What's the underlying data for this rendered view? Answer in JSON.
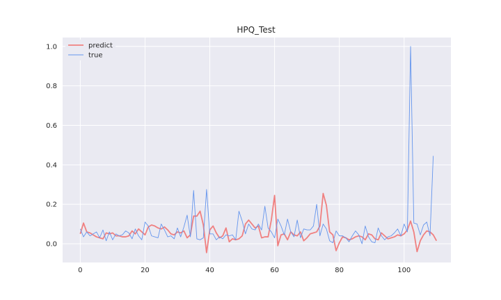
{
  "chart_data": {
    "type": "line",
    "title": "HPQ_Test",
    "xlabel": "",
    "ylabel": "",
    "xlim": [
      -5.45,
      114.45
    ],
    "ylim": [
      -0.095,
      1.045
    ],
    "xticks": [
      0,
      20,
      40,
      60,
      80,
      100
    ],
    "yticks": [
      0.0,
      0.2,
      0.4,
      0.6,
      0.8,
      1.0
    ],
    "ytick_labels": [
      "0.0",
      "0.2",
      "0.4",
      "0.6",
      "0.8",
      "1.0"
    ],
    "grid": true,
    "legend_position": "upper-left",
    "background_color": "#eaeaf2",
    "grid_color": "#ffffff",
    "series": [
      {
        "name": "predict",
        "color": "#f08080",
        "linewidth": 1.8,
        "values": [
          0.05,
          0.105,
          0.06,
          0.055,
          0.045,
          0.035,
          0.03,
          0.025,
          0.055,
          0.05,
          0.055,
          0.04,
          0.04,
          0.035,
          0.035,
          0.04,
          0.065,
          0.05,
          0.075,
          0.06,
          0.045,
          0.085,
          0.095,
          0.09,
          0.08,
          0.075,
          0.085,
          0.07,
          0.05,
          0.045,
          0.06,
          0.055,
          0.065,
          0.03,
          0.045,
          0.14,
          0.14,
          0.165,
          0.095,
          -0.045,
          0.07,
          0.09,
          0.055,
          0.03,
          0.04,
          0.08,
          0.01,
          0.025,
          0.02,
          0.025,
          0.04,
          0.1,
          0.12,
          0.1,
          0.08,
          0.09,
          0.03,
          0.035,
          0.035,
          0.12,
          0.245,
          -0.01,
          0.045,
          0.05,
          0.02,
          0.06,
          0.045,
          0.04,
          0.06,
          0.015,
          0.03,
          0.05,
          0.055,
          0.06,
          0.09,
          0.255,
          0.195,
          0.06,
          0.045,
          -0.035,
          0.005,
          0.035,
          0.03,
          0.02,
          0.025,
          0.035,
          0.04,
          0.035,
          0.02,
          0.05,
          0.045,
          0.025,
          0.02,
          0.055,
          0.04,
          0.025,
          0.03,
          0.035,
          0.045,
          0.04,
          0.05,
          0.07,
          0.115,
          0.06,
          -0.04,
          0.015,
          0.045,
          0.065,
          0.06,
          0.045,
          0.015
        ]
      },
      {
        "name": "true",
        "color": "#6495ed",
        "linewidth": 0.9,
        "values": [
          0.075,
          0.035,
          0.06,
          0.04,
          0.05,
          0.06,
          0.03,
          0.07,
          0.015,
          0.06,
          0.02,
          0.05,
          0.04,
          0.045,
          0.065,
          0.055,
          0.025,
          0.075,
          0.04,
          0.02,
          0.11,
          0.09,
          0.04,
          0.035,
          0.03,
          0.1,
          0.07,
          0.035,
          0.04,
          0.025,
          0.08,
          0.035,
          0.085,
          0.145,
          0.035,
          0.27,
          0.025,
          0.02,
          0.03,
          0.275,
          0.05,
          0.05,
          0.02,
          0.035,
          0.025,
          0.045,
          0.04,
          0.045,
          0.02,
          0.165,
          0.115,
          0.05,
          0.1,
          0.075,
          0.07,
          0.1,
          0.07,
          0.19,
          0.08,
          0.06,
          0.03,
          0.125,
          0.09,
          0.045,
          0.125,
          0.06,
          0.035,
          0.12,
          0.03,
          0.075,
          0.07,
          0.07,
          0.09,
          0.2,
          0.04,
          0.1,
          0.075,
          0.015,
          0.005,
          0.065,
          0.04,
          0.04,
          0.03,
          0.01,
          0.04,
          0.065,
          0.045,
          0.0,
          0.09,
          0.035,
          0.01,
          0.005,
          0.08,
          0.04,
          0.02,
          0.035,
          0.04,
          0.055,
          0.075,
          0.04,
          0.1,
          0.06,
          1.0,
          0.105,
          0.1,
          0.045,
          0.095,
          0.11,
          0.04,
          0.445
        ]
      }
    ]
  }
}
